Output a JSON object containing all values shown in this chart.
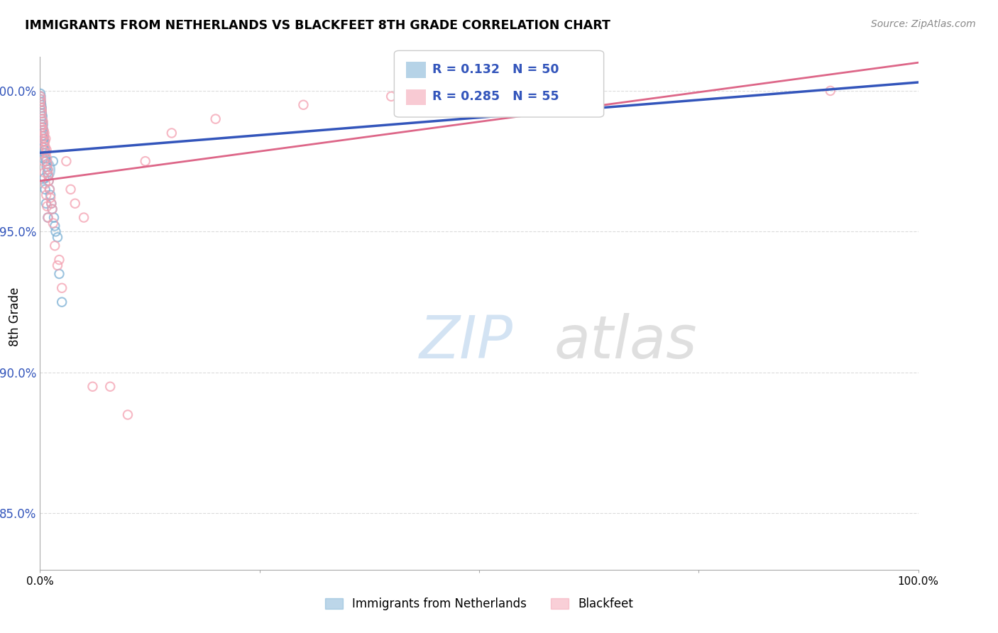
{
  "title": "IMMIGRANTS FROM NETHERLANDS VS BLACKFEET 8TH GRADE CORRELATION CHART",
  "source": "Source: ZipAtlas.com",
  "ylabel": "8th Grade",
  "R1": 0.132,
  "N1": 50,
  "R2": 0.285,
  "N2": 55,
  "x_range": [
    0.0,
    100.0
  ],
  "y_range": [
    83.0,
    101.2
  ],
  "y_ticks": [
    85.0,
    90.0,
    95.0,
    100.0
  ],
  "color_blue": "#7AAFD4",
  "color_pink": "#F4A0B0",
  "color_blue_line": "#3355BB",
  "color_pink_line": "#DD6688",
  "color_tick_labels": "#3355BB",
  "legend_label1": "Immigrants from Netherlands",
  "legend_label2": "Blackfeet",
  "blue_x": [
    0.05,
    0.08,
    0.1,
    0.12,
    0.15,
    0.18,
    0.2,
    0.22,
    0.25,
    0.28,
    0.3,
    0.32,
    0.35,
    0.38,
    0.4,
    0.42,
    0.45,
    0.48,
    0.5,
    0.55,
    0.6,
    0.65,
    0.7,
    0.75,
    0.8,
    0.85,
    0.9,
    0.95,
    1.0,
    1.1,
    1.2,
    1.3,
    1.4,
    1.5,
    1.6,
    1.7,
    1.8,
    2.0,
    2.2,
    2.5,
    0.1,
    0.15,
    0.2,
    0.25,
    0.3,
    0.35,
    0.5,
    0.6,
    0.7,
    0.9
  ],
  "blue_y": [
    99.9,
    99.7,
    99.8,
    99.6,
    99.5,
    99.3,
    99.4,
    99.2,
    99.0,
    99.1,
    98.9,
    98.7,
    98.8,
    98.5,
    98.6,
    98.3,
    98.4,
    98.1,
    98.2,
    97.9,
    97.8,
    97.6,
    97.5,
    97.3,
    97.4,
    97.1,
    97.2,
    97.0,
    96.8,
    96.5,
    96.3,
    96.0,
    95.8,
    97.5,
    95.5,
    95.2,
    95.0,
    94.8,
    93.5,
    92.5,
    99.6,
    99.2,
    98.8,
    98.4,
    98.0,
    97.6,
    96.9,
    96.5,
    96.0,
    95.5
  ],
  "blue_sizes": [
    80,
    80,
    80,
    80,
    80,
    80,
    80,
    80,
    80,
    80,
    80,
    80,
    80,
    80,
    80,
    80,
    80,
    80,
    80,
    80,
    80,
    80,
    80,
    80,
    80,
    80,
    80,
    80,
    80,
    80,
    80,
    80,
    80,
    80,
    80,
    80,
    80,
    80,
    80,
    80,
    80,
    80,
    80,
    80,
    80,
    80,
    80,
    80,
    80,
    80
  ],
  "blue_big_x": [
    0.06
  ],
  "blue_big_y": [
    97.2
  ],
  "blue_big_size": [
    800
  ],
  "pink_x": [
    0.05,
    0.08,
    0.1,
    0.15,
    0.18,
    0.2,
    0.25,
    0.3,
    0.35,
    0.4,
    0.45,
    0.5,
    0.55,
    0.6,
    0.65,
    0.7,
    0.75,
    0.8,
    0.85,
    0.9,
    0.95,
    1.0,
    1.1,
    1.2,
    1.3,
    1.4,
    1.5,
    1.7,
    2.0,
    2.5,
    3.0,
    3.5,
    4.0,
    5.0,
    6.0,
    8.0,
    10.0,
    12.0,
    15.0,
    20.0,
    0.12,
    0.22,
    0.32,
    0.42,
    0.52,
    0.62,
    0.72,
    0.82,
    0.92,
    2.2,
    30.0,
    40.0,
    50.0,
    60.0,
    90.0
  ],
  "pink_y": [
    99.8,
    99.6,
    99.7,
    99.4,
    99.2,
    99.3,
    99.0,
    98.8,
    98.9,
    98.6,
    98.4,
    98.5,
    98.2,
    98.0,
    98.3,
    97.8,
    97.9,
    97.6,
    97.4,
    97.2,
    97.0,
    96.8,
    96.5,
    96.2,
    96.0,
    95.8,
    95.3,
    94.5,
    93.8,
    93.0,
    97.5,
    96.5,
    96.0,
    95.5,
    89.5,
    89.5,
    88.5,
    97.5,
    98.5,
    99.0,
    98.7,
    98.3,
    97.9,
    97.5,
    97.1,
    96.7,
    96.3,
    95.9,
    95.5,
    94.0,
    99.5,
    99.8,
    100.0,
    99.5,
    100.0
  ],
  "blue_line_x": [
    0.0,
    100.0
  ],
  "blue_line_y": [
    97.8,
    100.3
  ],
  "pink_line_x": [
    0.0,
    100.0
  ],
  "pink_line_y": [
    96.8,
    101.0
  ]
}
